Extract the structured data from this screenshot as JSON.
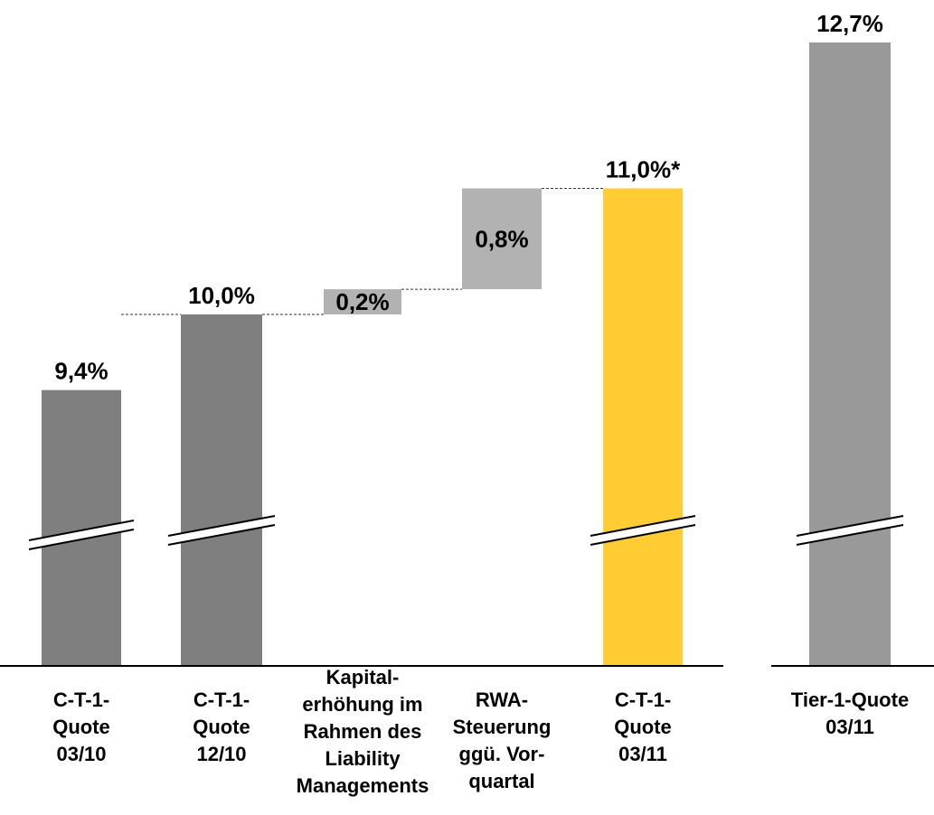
{
  "chart_data": {
    "type": "bar",
    "subtype": "waterfall-with-axis-breaks",
    "categories": [
      "C-T-1-\nQuote\n03/10",
      "C-T-1-\nQuote\n12/10",
      "Kapital-\nerhöhung im\nRahmen des\nLiability\nManagements",
      "RWA-\nSteuerung\nggü. Vor-\nquartal",
      "C-T-1-\nQuote\n03/11",
      "Tier-1-Quote\n03/11"
    ],
    "values": [
      9.4,
      10.0,
      0.2,
      0.8,
      11.0,
      12.7
    ],
    "kinds": [
      "total",
      "total",
      "delta",
      "delta",
      "total",
      "total"
    ],
    "value_labels": [
      "9,4%",
      "10,0%",
      "0,2%",
      "0,8%",
      "11,0%*",
      "12,7%"
    ],
    "axis_breaks": [
      true,
      true,
      false,
      false,
      true,
      true
    ],
    "colors": {
      "total": "#7f7f7f",
      "delta": "#b2b2b2",
      "highlight": "#ffcc33",
      "tier1": "#999999"
    },
    "highlight_index": 4,
    "connectors": true,
    "title": "",
    "xlabel": "",
    "ylabel": ""
  }
}
